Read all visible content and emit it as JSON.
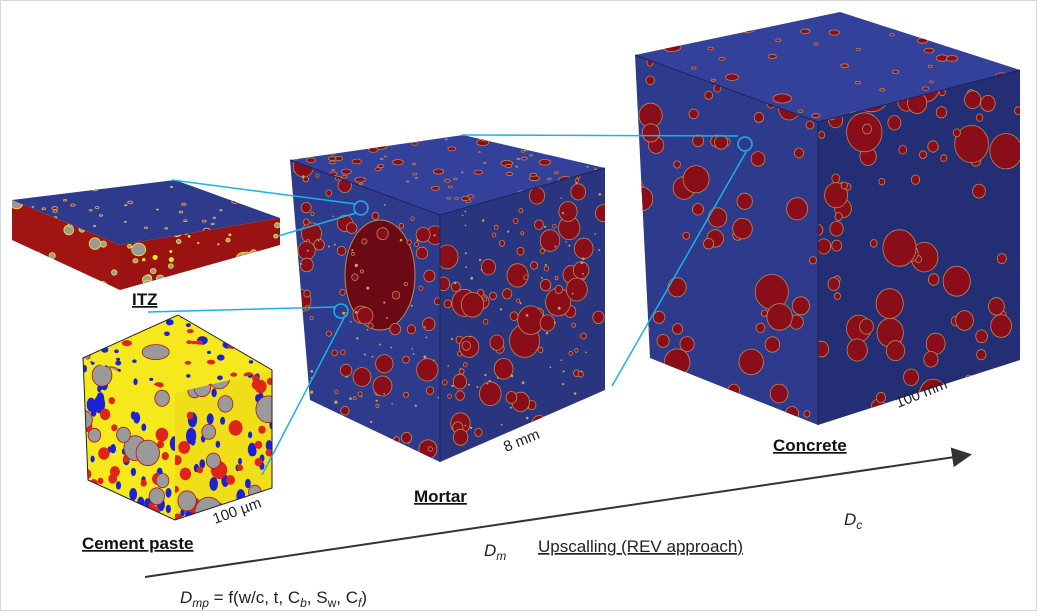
{
  "labels": {
    "itz": "ITZ",
    "cement_paste": "Cement paste",
    "mortar": "Mortar",
    "concrete": "Concrete"
  },
  "scales": {
    "cement_paste": "100 µm",
    "mortar": "8 mm",
    "concrete": "100 mm"
  },
  "formula": {
    "D": "D",
    "mp": "mp",
    "eq": " = f(w/c, t, C",
    "b": "b",
    "s1": ", S",
    "w": "w",
    "s2": ", C",
    "f": "f",
    "close": ")"
  },
  "dm": {
    "D": "D",
    "sub": "m"
  },
  "upscaling": "Upscalling (REV approach)",
  "dc": {
    "D": "D",
    "sub": "c"
  },
  "colors": {
    "matrix_blue": "#2e3a8c",
    "inclusion_red": "#8a0d1a",
    "paste_yellow": "#f5e81c",
    "paste_blue": "#1a22d6",
    "paste_red": "#e0241c",
    "grain_gray": "#9a9a9a",
    "connector": "#1ab2e8",
    "arrow": "#333333"
  }
}
